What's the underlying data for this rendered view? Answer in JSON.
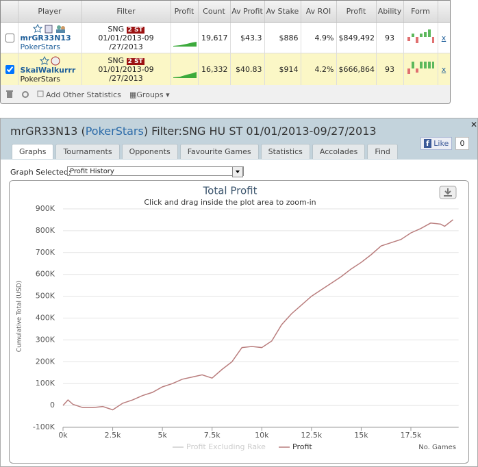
{
  "table": {
    "headers": [
      "Player",
      "Filter",
      "Profit",
      "Count",
      "Av Profit",
      "Av Stake",
      "Av ROI",
      "Profit",
      "Ability",
      "Form"
    ],
    "rows": [
      {
        "player": "mrGR33N13",
        "site": "PokerStars",
        "game": "SNG",
        "badge": "2 ST",
        "date_line1": "01/01/2013-09",
        "date_line2": "/27/2013",
        "count": "19,617",
        "av_profit": "$43.3",
        "av_stake": "$886",
        "av_roi": "4.9%",
        "profit": "$849,492",
        "ability": "93",
        "remove": "x",
        "checked": false
      },
      {
        "player": "SkaiWalkurrr",
        "site": "PokerStars",
        "game": "SNG",
        "badge": "2 ST",
        "date_line1": "01/01/2013-09",
        "date_line2": "/27/2013",
        "count": "16,332",
        "av_profit": "$40.83",
        "av_stake": "$914",
        "av_roi": "4.2%",
        "profit": "$666,864",
        "ability": "93",
        "remove": "x",
        "checked": true
      }
    ]
  },
  "toolbar": {
    "add": "Add Other Statistics",
    "groups": "Groups"
  },
  "panel": {
    "title_start": "mrGR33N13 (",
    "title_site": "PokerStars",
    "title_end": ") Filter:SNG HU ST 01/01/2013-09/27/2013",
    "tabs": [
      "Graphs",
      "Tournaments",
      "Opponents",
      "Favourite Games",
      "Statistics",
      "Accolades",
      "Find"
    ],
    "active_tab": 0,
    "like": "Like",
    "like_count": "0",
    "graph_selected_label": "Graph Selected:",
    "graph_selected": "Profit History"
  },
  "chart_data": {
    "type": "line",
    "title": "Total Profit",
    "subtitle": "Click and drag inside the plot area to zoom-in",
    "y_label": "Cumulative Total (USD)",
    "x_label": "No. Games",
    "x": [
      0,
      250,
      500,
      1000,
      1500,
      2000,
      2500,
      3000,
      3500,
      4000,
      4500,
      5000,
      5500,
      6000,
      6500,
      7000,
      7500,
      8000,
      8500,
      9000,
      9500,
      10000,
      10500,
      11000,
      11500,
      12000,
      12500,
      13000,
      13500,
      14000,
      14500,
      15000,
      15500,
      16000,
      16500,
      17000,
      17500,
      18000,
      18500,
      19000,
      19200,
      19617
    ],
    "series": [
      {
        "name": "Profit",
        "color": "#b97d7d",
        "values": [
          0,
          25000,
          5000,
          -10000,
          -10000,
          -5000,
          -20000,
          10000,
          25000,
          45000,
          60000,
          85000,
          100000,
          120000,
          130000,
          140000,
          125000,
          165000,
          200000,
          265000,
          270000,
          265000,
          295000,
          370000,
          420000,
          460000,
          500000,
          530000,
          560000,
          590000,
          625000,
          655000,
          690000,
          730000,
          745000,
          760000,
          790000,
          810000,
          835000,
          830000,
          820000,
          850000
        ]
      }
    ],
    "hidden_series": [
      {
        "name": "Profit Excluding Rake",
        "color": "#cccccc"
      }
    ],
    "xlim": [
      0,
      19900
    ],
    "ylim": [
      -100000,
      900000
    ],
    "xticks": [
      {
        "value": 0,
        "label": "0k"
      },
      {
        "value": 2500,
        "label": "2.5k"
      },
      {
        "value": 5000,
        "label": "5k"
      },
      {
        "value": 7500,
        "label": "7.5k"
      },
      {
        "value": 10000,
        "label": "10k"
      },
      {
        "value": 12500,
        "label": "12.5k"
      },
      {
        "value": 15000,
        "label": "15k"
      },
      {
        "value": 17500,
        "label": "17.5k"
      }
    ],
    "yticks": [
      {
        "value": -100000,
        "label": "-100K"
      },
      0,
      {
        "value": 100000,
        "label": "100K"
      },
      {
        "value": 200000,
        "label": "200K"
      },
      {
        "value": 300000,
        "label": "300K"
      },
      {
        "value": 400000,
        "label": "400K"
      },
      {
        "value": 500000,
        "label": "500K"
      },
      {
        "value": 600000,
        "label": "600K"
      },
      {
        "value": 700000,
        "label": "700K"
      },
      {
        "value": 800000,
        "label": "800K"
      },
      {
        "value": 900000,
        "label": "900K"
      }
    ],
    "grid": true
  }
}
